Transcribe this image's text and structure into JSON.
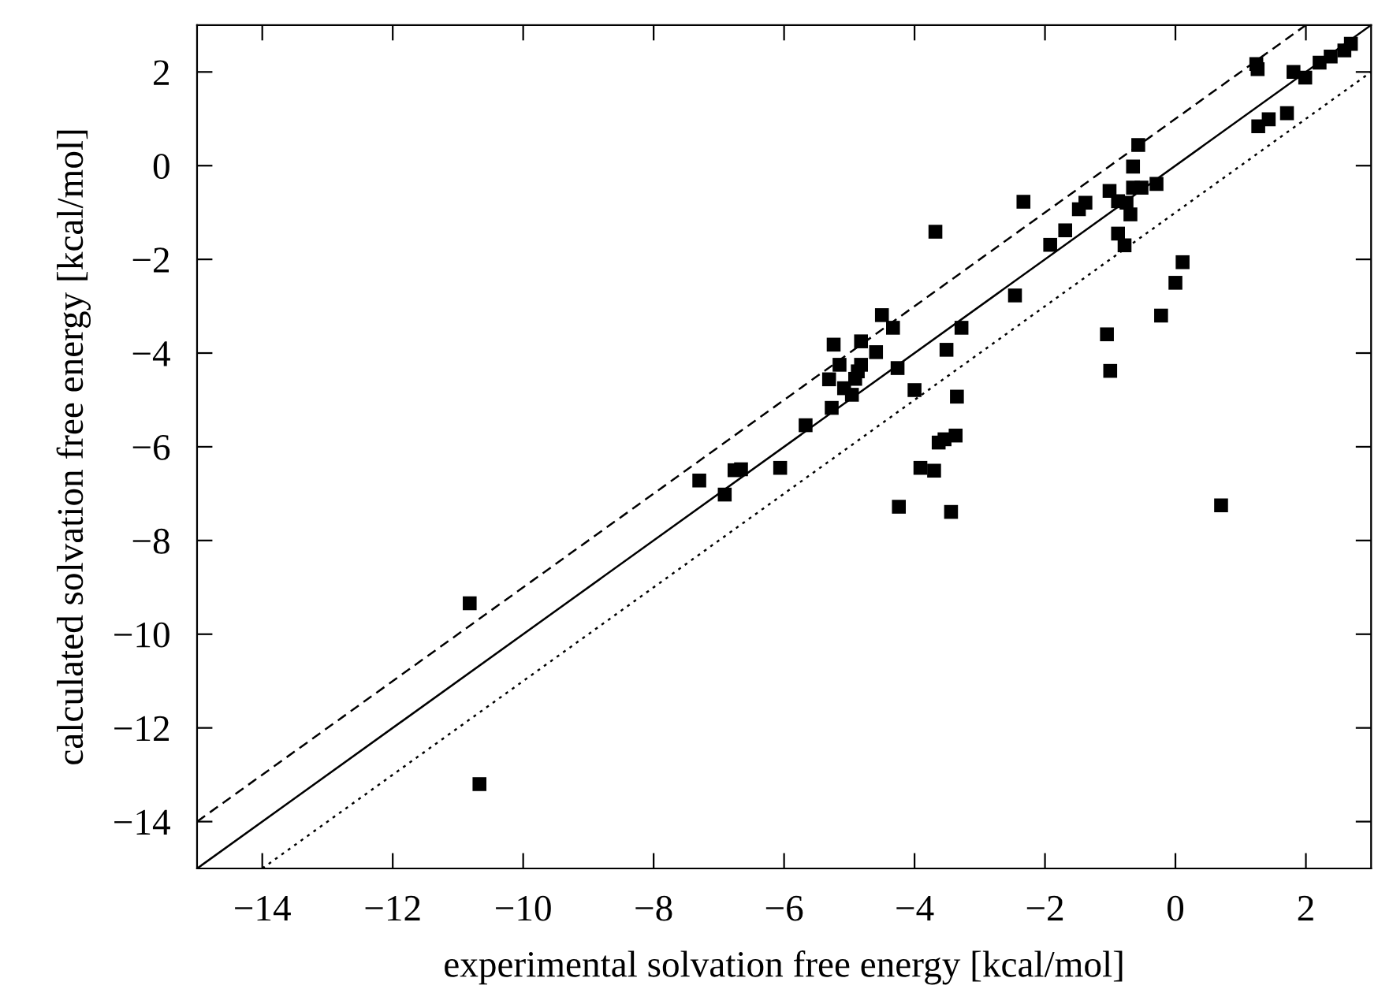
{
  "chart_data": {
    "type": "scatter",
    "xlabel": "experimental solvation free energy [kcal/mol]",
    "ylabel": "calculated solvation free energy [kcal/mol]",
    "xlim": [
      -15,
      3
    ],
    "ylim": [
      -15,
      3
    ],
    "xticks": [
      {
        "value": -14,
        "label": "−14"
      },
      {
        "value": -12,
        "label": "−12"
      },
      {
        "value": -10,
        "label": "−10"
      },
      {
        "value": -8,
        "label": "−8"
      },
      {
        "value": -6,
        "label": "−6"
      },
      {
        "value": -4,
        "label": "−4"
      },
      {
        "value": -2,
        "label": "−2"
      },
      0,
      2
    ],
    "yticks": [
      {
        "value": -14,
        "label": "−14"
      },
      {
        "value": -12,
        "label": "−12"
      },
      {
        "value": -10,
        "label": "−10"
      },
      {
        "value": -8,
        "label": "−8"
      },
      {
        "value": -6,
        "label": "−6"
      },
      {
        "value": -4,
        "label": "−4"
      },
      {
        "value": -2,
        "label": "−2"
      },
      0,
      2
    ],
    "grid": false,
    "series": [
      {
        "type": "line",
        "x": [
          -15,
          3
        ],
        "values": [
          -15,
          3
        ],
        "color": "#000000",
        "line_style": "solid",
        "marker": "none"
      },
      {
        "type": "line",
        "x": [
          -15,
          2
        ],
        "values": [
          -14,
          3
        ],
        "color": "#000000",
        "line_style": "dashed",
        "marker": "none"
      },
      {
        "type": "line",
        "x": [
          -14,
          3
        ],
        "values": [
          -15,
          2
        ],
        "color": "#000000",
        "line_style": "dotted",
        "marker": "none"
      },
      {
        "color": "#000000",
        "marker": "square",
        "x": [
          -10.82,
          -10.67,
          -7.3,
          -6.91,
          -6.76,
          -6.66,
          -6.06,
          -5.67,
          -5.27,
          -5.31,
          -5.24,
          -5.15,
          -5.08,
          -4.96,
          -4.91,
          -4.87,
          -4.82,
          -4.82,
          -4.59,
          -4.5,
          -4.33,
          -4.26,
          -4.0,
          -4.24,
          -3.91,
          -3.7,
          -3.63,
          -3.54,
          -3.37,
          -3.44,
          -3.35,
          -3.51,
          -3.28,
          -3.68,
          -2.33,
          -2.46,
          -1.92,
          -1.69,
          -1.48,
          -1.38,
          -1.01,
          -0.88,
          -0.75,
          -0.65,
          -0.52,
          -0.69,
          -0.29,
          -0.65,
          -0.57,
          -0.88,
          -0.78,
          0.11,
          0.0,
          -0.22,
          -1.05,
          -1.0,
          1.24,
          1.26,
          1.27,
          1.43,
          1.71,
          1.81,
          1.99,
          2.21,
          2.38,
          2.59,
          2.69,
          0.7
        ],
        "values": [
          -9.34,
          -13.2,
          -6.72,
          -7.02,
          -6.5,
          -6.48,
          -6.45,
          -5.54,
          -5.17,
          -4.56,
          -3.82,
          -4.25,
          -4.75,
          -4.89,
          -4.55,
          -4.39,
          -4.25,
          -3.75,
          -3.98,
          -3.19,
          -3.46,
          -4.32,
          -4.79,
          -7.28,
          -6.45,
          -6.51,
          -5.91,
          -5.84,
          -5.76,
          -7.39,
          -4.93,
          -3.93,
          -3.46,
          -1.41,
          -0.77,
          -2.77,
          -1.69,
          -1.38,
          -0.93,
          -0.79,
          -0.54,
          -0.76,
          -0.79,
          -0.47,
          -0.47,
          -1.04,
          -0.39,
          -0.02,
          0.44,
          -1.45,
          -1.7,
          -2.06,
          -2.5,
          -3.2,
          -3.6,
          -4.38,
          2.17,
          2.06,
          0.84,
          0.99,
          1.12,
          2.0,
          1.88,
          2.2,
          2.33,
          2.46,
          2.6,
          -7.25
        ]
      }
    ]
  }
}
